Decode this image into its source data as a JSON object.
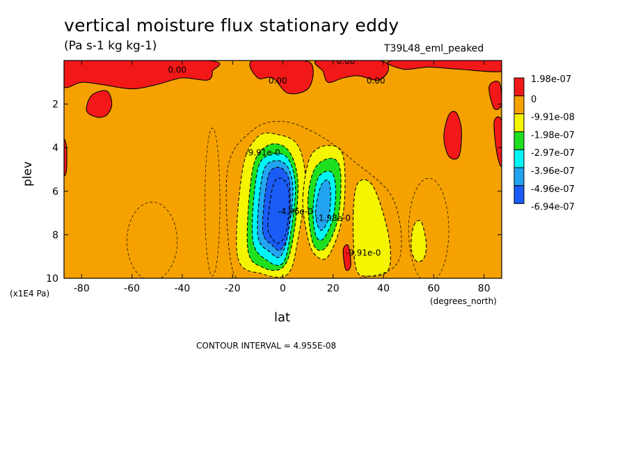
{
  "chart_data": {
    "type": "heatmap",
    "title": "vertical moisture flux stationary eddy",
    "units": "(Pa s-1 kg kg-1)",
    "run_label": "T39L48_eml_peaked",
    "xlabel": "lat",
    "ylabel": "plev",
    "x_unit": "(degrees_north)",
    "y_unit": "(x1E4 Pa)",
    "xlim": [
      -87,
      87
    ],
    "ylim": [
      10,
      0
    ],
    "x_ticks": [
      -80,
      -60,
      -40,
      -20,
      0,
      20,
      40,
      60,
      80
    ],
    "y_ticks": [
      2,
      4,
      6,
      8,
      10
    ],
    "contour_interval_text": "CONTOUR INTERVAL = 4.955E-08",
    "colorbar": [
      {
        "label": "1.98e-07",
        "color": "#f21818"
      },
      {
        "label": "0",
        "color": "#f5a200"
      },
      {
        "label": "-9.91e-08",
        "color": "#f5f500"
      },
      {
        "label": "-1.98e-07",
        "color": "#1fe01f"
      },
      {
        "label": "-2.97e-07",
        "color": "#00f5f5"
      },
      {
        "label": "-3.96e-07",
        "color": "#22a4f0"
      },
      {
        "label": "-4.96e-07",
        "color": "#1a5cf5"
      },
      {
        "label": "-6.94e-07",
        "color": ""
      }
    ],
    "contour_labels": [
      {
        "text": "0.00",
        "lat": -42,
        "plev": 0.4
      },
      {
        "text": "0.00",
        "lat": 25,
        "plev": 0.0
      },
      {
        "text": "0.00",
        "lat": -2,
        "plev": 0.9
      },
      {
        "text": "0.00",
        "lat": 37,
        "plev": 0.9
      },
      {
        "text": "-9.91e-0",
        "lat": -8,
        "plev": 4.2
      },
      {
        "text": "-1.98e-0",
        "lat": 20,
        "plev": 7.2
      },
      {
        "text": "-4.96e-0",
        "lat": 5,
        "plev": 6.9
      },
      {
        "text": "-9.91e-0",
        "lat": 32,
        "plev": 8.8
      }
    ],
    "regions": [
      {
        "level": "1.98e-07",
        "lat": [
          -80,
          -35
        ],
        "plev": [
          0,
          1.5
        ],
        "note": "positive band near top"
      },
      {
        "level": "1.98e-07",
        "lat": [
          15,
          40
        ],
        "plev": [
          0,
          1.2
        ],
        "note": "positive band near top"
      },
      {
        "level": "1.98e-07",
        "lat": [
          -78,
          -68
        ],
        "plev": [
          1.5,
          2.6
        ]
      },
      {
        "level": "1.98e-07",
        "lat": [
          64,
          72
        ],
        "plev": [
          2.5,
          4.5
        ]
      },
      {
        "level": "-6.94e-07",
        "lat": [
          -4,
          3
        ],
        "plev": [
          5.5,
          8.5
        ],
        "note": "minimum core"
      },
      {
        "level": "-4.96e-07",
        "lat": [
          14,
          20
        ],
        "plev": [
          5.5,
          7.5
        ]
      },
      {
        "level": "-9.91e-08",
        "lat": [
          30,
          40
        ],
        "plev": [
          6,
          9.5
        ]
      },
      {
        "level": "-9.91e-08",
        "lat": [
          52,
          58
        ],
        "plev": [
          7.5,
          8.8
        ]
      }
    ]
  }
}
